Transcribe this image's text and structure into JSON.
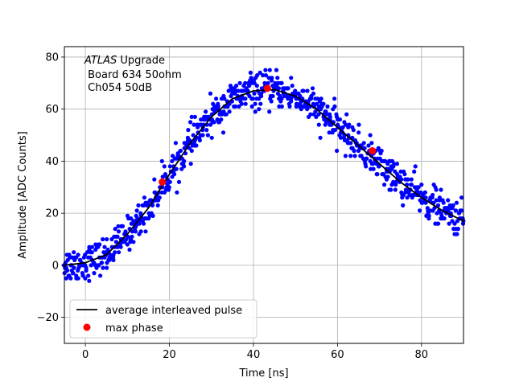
{
  "chart_data": {
    "type": "scatter",
    "xlabel": "Time [ns]",
    "ylabel": "Amplitude [ADC Counts]",
    "xlim": [
      -5,
      90
    ],
    "ylim": [
      -30,
      84
    ],
    "xticks": [
      0,
      20,
      40,
      60,
      80
    ],
    "yticks": [
      -20,
      0,
      20,
      40,
      60,
      80
    ],
    "xtick_labels": [
      "0",
      "20",
      "40",
      "60",
      "80"
    ],
    "ytick_labels": [
      "−20",
      "0",
      "20",
      "40",
      "60",
      "80"
    ],
    "grid": true,
    "legend_position": "lower-left",
    "annotation": {
      "italic_part": "ATLAS",
      "line1_rest": " Upgrade",
      "line2": " Board 634 50ohm",
      "line3": " Ch054 50dB"
    },
    "series": [
      {
        "name": "",
        "kind": "scatter-samples",
        "color": "#0000ff",
        "description_of_shape": "noisy samples scattered around average pulse, spread about ±6 counts",
        "x_range": [
          -5,
          90
        ],
        "noise_amplitude": 6
      },
      {
        "name": "average interleaved pulse",
        "kind": "line",
        "color": "#000000",
        "x": [
          -5,
          0,
          5,
          10,
          15,
          20,
          25,
          30,
          35,
          40,
          45,
          50,
          55,
          60,
          65,
          70,
          75,
          80,
          85,
          90
        ],
        "y": [
          0,
          1,
          4,
          12,
          22,
          35,
          47,
          57,
          64,
          67,
          67.5,
          65,
          60,
          53,
          46,
          39,
          32,
          26,
          21,
          17
        ]
      },
      {
        "name": "max phase",
        "kind": "marker",
        "color": "#ff0000",
        "x": [
          18.3,
          43.3,
          68.3
        ],
        "y": [
          32,
          68,
          44
        ]
      }
    ]
  }
}
